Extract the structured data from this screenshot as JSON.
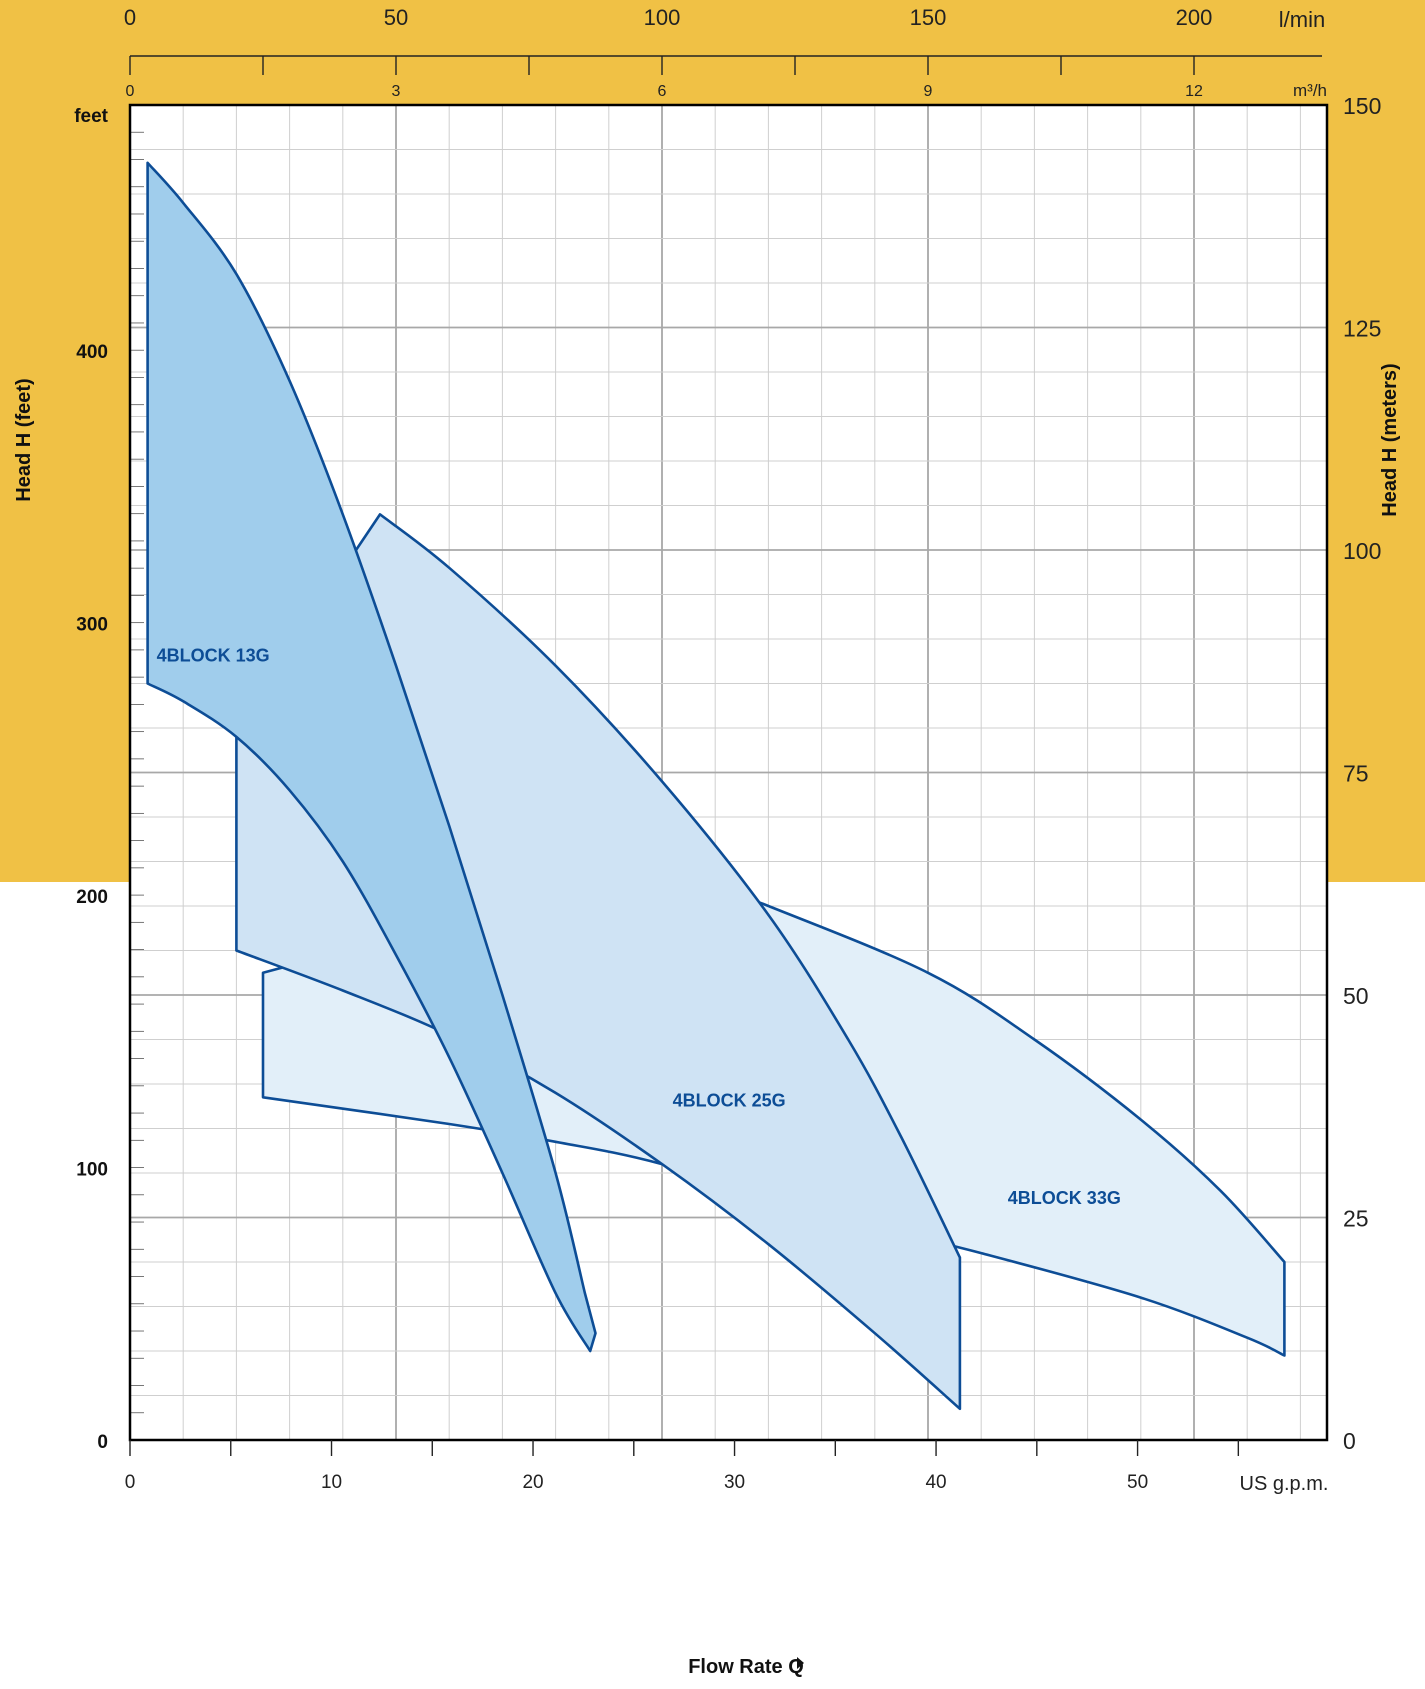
{
  "chart_data": {
    "type": "area",
    "title": "",
    "left_axis": {
      "label_prefix": "Head ",
      "label_symbol": "H",
      "label_suffix": " (feet)",
      "unit": "feet",
      "ticks": [
        0,
        100,
        200,
        300,
        400
      ],
      "range": [
        0,
        490
      ]
    },
    "right_axis": {
      "label_prefix": "Head ",
      "label_symbol": "H",
      "label_suffix": " (meters)",
      "ticks": [
        0,
        25,
        50,
        75,
        100,
        125,
        150
      ],
      "range": [
        0,
        150
      ]
    },
    "top_axis_lmin": {
      "unit": "l/min",
      "ticks": [
        0,
        50,
        100,
        150,
        200
      ],
      "range": [
        0,
        225
      ]
    },
    "top_axis_m3h": {
      "unit": "m³/h",
      "ticks": [
        0,
        3,
        6,
        9,
        12
      ],
      "range": [
        0,
        13.5
      ]
    },
    "bottom_axis": {
      "unit": "US g.p.m.",
      "ticks": [
        0,
        10,
        20,
        30,
        40,
        50
      ],
      "range": [
        0,
        59.4
      ]
    },
    "xlabel_prefix": "Flow Rate ",
    "xlabel_symbol": "Q",
    "grid": true,
    "series": [
      {
        "name": "4BLOCK 13G",
        "fill": "#a0cdec",
        "label_at": {
          "x_lmin": 5,
          "head_m": 87.5
        },
        "upper": [
          [
            3.3,
            143.5
          ],
          [
            10,
            139
          ],
          [
            20,
            131
          ],
          [
            30,
            119
          ],
          [
            40,
            104
          ],
          [
            50,
            87
          ],
          [
            60,
            69
          ],
          [
            70,
            50
          ],
          [
            80,
            30
          ],
          [
            85.5,
            16.5
          ]
        ],
        "lower": [
          [
            3.3,
            85
          ],
          [
            10,
            83
          ],
          [
            20,
            79
          ],
          [
            30,
            73
          ],
          [
            40,
            65
          ],
          [
            50,
            54.5
          ],
          [
            60,
            43
          ],
          [
            70,
            30
          ],
          [
            80,
            16.5
          ],
          [
            86.5,
            10
          ]
        ],
        "cutoff_top_head_m": 27,
        "cutoff_bottom_x_lmin": 87.5,
        "cutoff_bottom_head_m": 12
      },
      {
        "name": "4BLOCK 25G",
        "fill": "#cfe3f4",
        "label_at": {
          "x_lmin": 102,
          "head_m": 37.5
        },
        "upper": [
          [
            47,
            104
          ],
          [
            60,
            98
          ],
          [
            80,
            87
          ],
          [
            100,
            74
          ],
          [
            120,
            59
          ],
          [
            135,
            45
          ],
          [
            145,
            34
          ],
          [
            156,
            20.5
          ]
        ],
        "lower": [
          [
            20,
            55
          ],
          [
            40,
            50.5
          ],
          [
            60,
            45.5
          ],
          [
            80,
            39
          ],
          [
            100,
            31
          ],
          [
            120,
            22
          ],
          [
            140,
            12
          ],
          [
            156,
            3.5
          ]
        ],
        "side_start_head_m": 80,
        "cutoff_top_head_m": 28.5,
        "cutoff_bottom_head_m": 12.5
      },
      {
        "name": "4BLOCK 33G",
        "fill": "#e2eff9",
        "label_at": {
          "x_lmin": 165,
          "head_m": 26.5
        },
        "upper": [
          [
            100,
            64.5
          ],
          [
            120,
            60
          ],
          [
            150,
            52.5
          ],
          [
            170,
            45
          ],
          [
            190,
            36
          ],
          [
            205,
            28
          ],
          [
            217,
            20
          ]
        ],
        "lower": [
          [
            25,
            38.5
          ],
          [
            60,
            35.5
          ],
          [
            80,
            33.5
          ],
          [
            100,
            31
          ],
          [
            130,
            25.5
          ],
          [
            160,
            21
          ],
          [
            190,
            16
          ],
          [
            210,
            11.5
          ],
          [
            217,
            9.5
          ]
        ],
        "side_start_head_m": 52.5,
        "cutoff_top_head_m": 20,
        "cutoff_bottom_head_m": 9.5
      }
    ]
  }
}
